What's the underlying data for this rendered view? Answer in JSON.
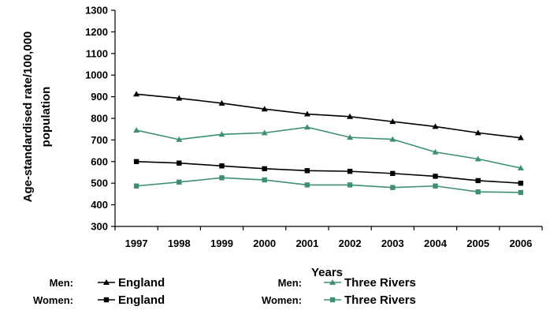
{
  "chart_data": {
    "type": "line",
    "xlabel": "Years",
    "ylabel_line1": "Age-standardised rate/100,000",
    "ylabel_line2": "population",
    "ylim": [
      300,
      1300
    ],
    "yticks": [
      300,
      400,
      500,
      600,
      700,
      800,
      900,
      1000,
      1100,
      1200,
      1300
    ],
    "categories": [
      "1997",
      "1998",
      "1999",
      "2000",
      "2001",
      "2002",
      "2003",
      "2004",
      "2005",
      "2006"
    ],
    "grid": false,
    "legend_position": "bottom",
    "series": [
      {
        "group": "Men:",
        "name": "England",
        "marker": "triangle",
        "color": "#000000",
        "values": [
          912,
          893,
          870,
          843,
          820,
          808,
          785,
          762,
          733,
          710
        ]
      },
      {
        "group": "Men:",
        "name": "Three Rivers",
        "marker": "triangle",
        "color": "#3f8f78",
        "values": [
          745,
          702,
          726,
          733,
          759,
          712,
          703,
          644,
          612,
          570
        ]
      },
      {
        "group": "Women:",
        "name": "England",
        "marker": "square",
        "color": "#000000",
        "values": [
          600,
          593,
          580,
          567,
          558,
          555,
          545,
          532,
          512,
          500
        ]
      },
      {
        "group": "Women:",
        "name": "Three Rivers",
        "marker": "square",
        "color": "#3f8f78",
        "values": [
          487,
          505,
          525,
          515,
          492,
          492,
          480,
          487,
          460,
          457
        ]
      }
    ]
  }
}
